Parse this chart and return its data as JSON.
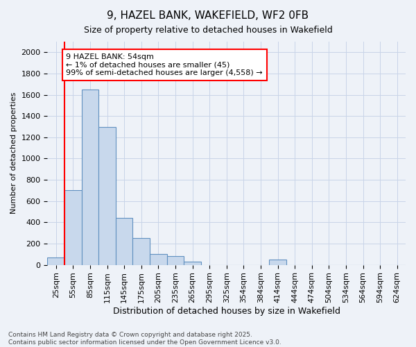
{
  "title_line1": "9, HAZEL BANK, WAKEFIELD, WF2 0FB",
  "title_line2": "Size of property relative to detached houses in Wakefield",
  "xlabel": "Distribution of detached houses by size in Wakefield",
  "ylabel": "Number of detached properties",
  "categories": [
    "25sqm",
    "55sqm",
    "85sqm",
    "115sqm",
    "145sqm",
    "175sqm",
    "205sqm",
    "235sqm",
    "265sqm",
    "295sqm",
    "325sqm",
    "354sqm",
    "384sqm",
    "414sqm",
    "444sqm",
    "474sqm",
    "504sqm",
    "534sqm",
    "564sqm",
    "594sqm",
    "624sqm"
  ],
  "values": [
    70,
    700,
    1650,
    1300,
    440,
    250,
    100,
    80,
    30,
    0,
    0,
    0,
    0,
    50,
    0,
    0,
    0,
    0,
    0,
    0,
    0
  ],
  "bar_color": "#c8d8ec",
  "bar_edge_color": "#6090c0",
  "annotation_text_line1": "9 HAZEL BANK: 54sqm",
  "annotation_text_line2": "← 1% of detached houses are smaller (45)",
  "annotation_text_line3": "99% of semi-detached houses are larger (4,558) →",
  "annotation_box_color": "white",
  "annotation_box_edge_color": "red",
  "vline_color": "red",
  "vline_x": 0.5,
  "ylim": [
    0,
    2100
  ],
  "yticks": [
    0,
    200,
    400,
    600,
    800,
    1000,
    1200,
    1400,
    1600,
    1800,
    2000
  ],
  "grid_color": "#c8d4e8",
  "background_color": "#eef2f8",
  "footer_line1": "Contains HM Land Registry data © Crown copyright and database right 2025.",
  "footer_line2": "Contains public sector information licensed under the Open Government Licence v3.0.",
  "title_fontsize": 11,
  "subtitle_fontsize": 9,
  "xlabel_fontsize": 9,
  "ylabel_fontsize": 8,
  "tick_fontsize": 8,
  "annotation_fontsize": 8,
  "footer_fontsize": 6.5
}
